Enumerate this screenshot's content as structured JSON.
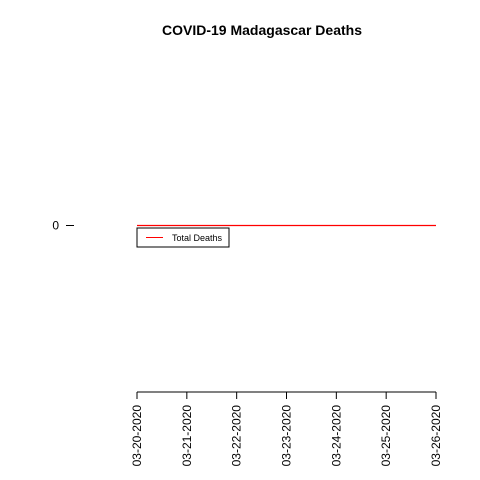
{
  "chart_data": {
    "type": "line",
    "title": "COVID-19 Madagascar Deaths",
    "xlabel": "",
    "ylabel": "",
    "categories": [
      "03-20-2020",
      "03-21-2020",
      "03-22-2020",
      "03-23-2020",
      "03-24-2020",
      "03-25-2020",
      "03-26-2020"
    ],
    "series": [
      {
        "name": "Total Deaths",
        "color": "#ff0000",
        "values": [
          0,
          0,
          0,
          0,
          0,
          0,
          0
        ]
      }
    ],
    "y_ticks": [
      0
    ],
    "ylim": [
      -1,
      1
    ],
    "legend_position": "top-left",
    "grid": false
  }
}
